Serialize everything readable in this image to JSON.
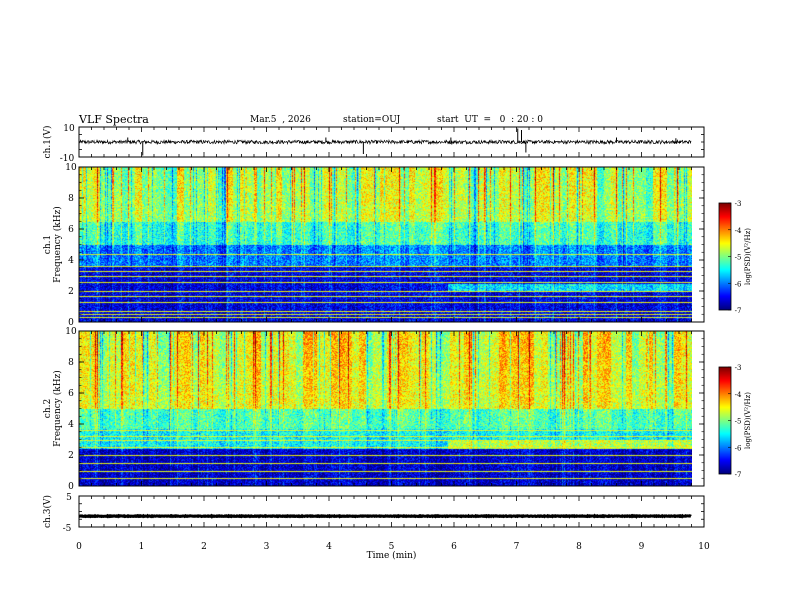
{
  "header": {
    "title": "VLF Spectra",
    "date": "Mar.5  , 2026",
    "station": "station=OUJ",
    "start": "start  UT  =   0  : 20 : 0"
  },
  "chart_data": [
    {
      "type": "line",
      "name": "ch1-waveform",
      "ylabel": "ch.1(V)",
      "yticks": [
        "10",
        "-10"
      ],
      "ylim": [
        -10,
        10
      ],
      "xlim": [
        0,
        10
      ],
      "x_end": 9.8,
      "baseline": 0,
      "noise_amplitude": 1.2,
      "spikes": [
        {
          "x": 1.02,
          "y": -9
        },
        {
          "x": 0.78,
          "y": 3
        },
        {
          "x": 4.55,
          "y": -8
        },
        {
          "x": 3.95,
          "y": 3
        },
        {
          "x": 5.95,
          "y": 3
        },
        {
          "x": 7.02,
          "y": 9
        },
        {
          "x": 7.08,
          "y": 8
        },
        {
          "x": 7.15,
          "y": -7
        },
        {
          "x": 8.6,
          "y": 3
        },
        {
          "x": 9.55,
          "y": 2.5
        }
      ]
    },
    {
      "type": "heatmap",
      "name": "ch1-spectrogram",
      "ylabel": "ch.1\nFrequency (kHz)",
      "yticks": [
        "0",
        "2",
        "4",
        "6",
        "8",
        "10"
      ],
      "ylim": [
        0,
        10
      ],
      "xlim": [
        0,
        10
      ],
      "x_end": 9.8,
      "colorbar": {
        "label": "log(PSD)(V²/Hz)",
        "ticks": [
          "-3",
          "-4",
          "-5",
          "-6",
          "-7"
        ],
        "range": [
          -7,
          -3
        ]
      },
      "lines_khz": [
        0.3,
        0.5,
        0.7,
        1.3,
        1.7,
        2.0,
        2.6,
        3.0,
        3.3,
        3.6,
        4.4
      ],
      "bands": [
        {
          "f0": 0,
          "f1": 3.6,
          "level": -6.6
        },
        {
          "f0": 3.6,
          "f1": 5.0,
          "level": -6.0
        },
        {
          "f0": 5.0,
          "f1": 6.5,
          "level": -5.3
        },
        {
          "f0": 6.5,
          "f1": 10,
          "level": -4.8
        }
      ],
      "shift_min": 5.9,
      "shift_band": {
        "f0": 2.0,
        "f1": 2.5,
        "level": -5.6
      }
    },
    {
      "type": "heatmap",
      "name": "ch2-spectrogram",
      "ylabel": "ch.2\nFrequency (kHz)",
      "yticks": [
        "0",
        "2",
        "4",
        "6",
        "8",
        "10"
      ],
      "ylim": [
        0,
        10
      ],
      "xlim": [
        0,
        10
      ],
      "x_end": 9.8,
      "colorbar": {
        "label": "log(PSD)(V²/Hz)",
        "ticks": [
          "-3",
          "-4",
          "-5",
          "-6",
          "-7"
        ],
        "range": [
          -7,
          -3
        ]
      },
      "lines_khz": [
        0.5,
        1.0,
        1.5,
        2.0,
        2.5,
        3.0,
        3.2,
        3.6
      ],
      "bands": [
        {
          "f0": 0,
          "f1": 2.4,
          "level": -6.7
        },
        {
          "f0": 2.4,
          "f1": 3.7,
          "level": -5.5
        },
        {
          "f0": 3.7,
          "f1": 5.0,
          "level": -5.2
        },
        {
          "f0": 5.0,
          "f1": 10,
          "level": -4.6
        }
      ],
      "shift_min": 5.9,
      "shift_band": {
        "f0": 2.4,
        "f1": 3.0,
        "level": -4.8
      }
    },
    {
      "type": "line",
      "name": "ch3-waveform",
      "ylabel": "ch.3(V)",
      "yticks": [
        "5",
        "-5"
      ],
      "ylim": [
        -5,
        5
      ],
      "xlim": [
        0,
        10
      ],
      "x_end": 9.8,
      "baseline": -1.5,
      "noise_amplitude": 0.1,
      "spikes": []
    }
  ],
  "x_axis": {
    "label": "Time  (min)",
    "ticks": [
      "0",
      "1",
      "2",
      "3",
      "4",
      "5",
      "6",
      "7",
      "8",
      "9",
      "10"
    ]
  }
}
